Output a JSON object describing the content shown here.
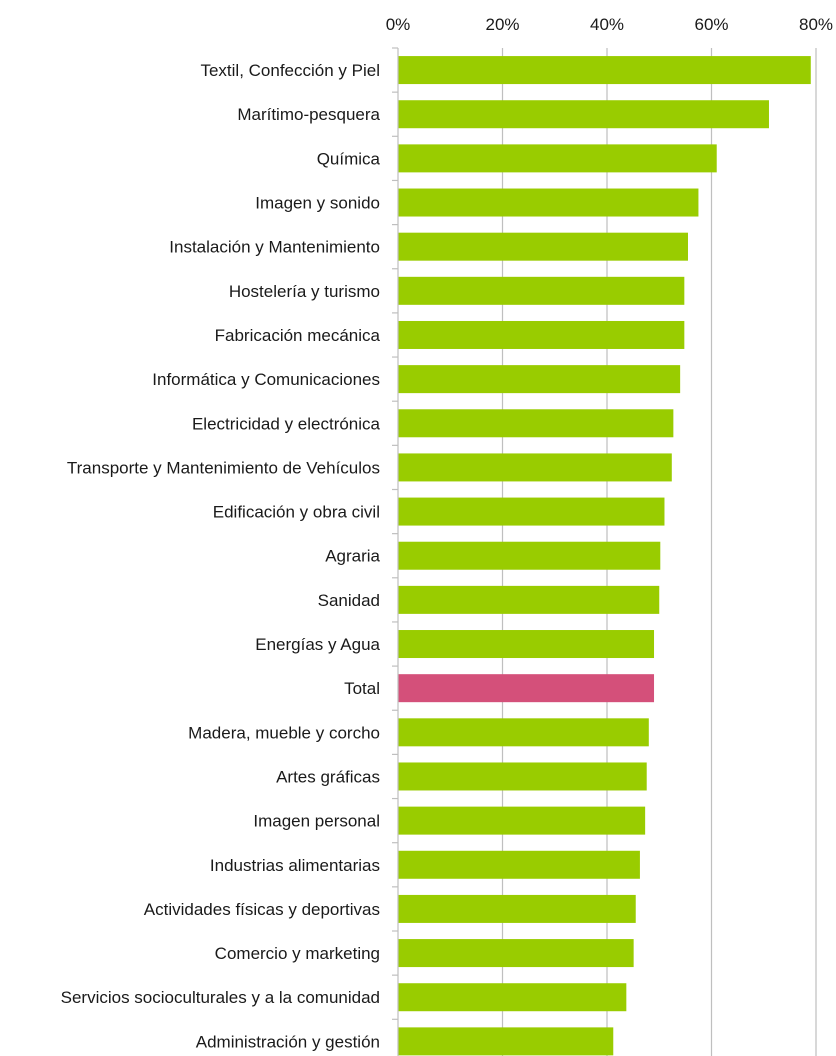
{
  "chart_data": {
    "type": "bar",
    "orientation": "horizontal",
    "title": "",
    "xlabel": "",
    "ylabel": "",
    "xlim": [
      0,
      0.8
    ],
    "x_ticks": [
      0,
      0.2,
      0.4,
      0.6,
      0.8
    ],
    "x_tick_labels": [
      "0%",
      "20%",
      "40%",
      "60%",
      "80%"
    ],
    "x_axis_position": "top",
    "grid": true,
    "legend": "none",
    "categories": [
      "Textil, Confección y Piel",
      "Marítimo-pesquera",
      "Química",
      "Imagen y sonido",
      "Instalación y Mantenimiento",
      "Hostelería y turismo",
      "Fabricación mecánica",
      "Informática y Comunicaciones",
      "Electricidad y electrónica",
      "Transporte y Mantenimiento de Vehículos",
      "Edificación y obra civil",
      "Agraria",
      "Sanidad",
      "Energías y Agua",
      "Total",
      "Madera, mueble y corcho",
      "Artes gráficas",
      "Imagen personal",
      "Industrias alimentarias",
      "Actividades físicas y deportivas",
      "Comercio y marketing",
      "Servicios socioculturales y a la comunidad",
      "Administración y gestión"
    ],
    "values": [
      0.79,
      0.71,
      0.61,
      0.575,
      0.555,
      0.548,
      0.548,
      0.54,
      0.527,
      0.524,
      0.51,
      0.502,
      0.5,
      0.49,
      0.49,
      0.48,
      0.476,
      0.473,
      0.463,
      0.455,
      0.451,
      0.437,
      0.412
    ],
    "bar_color": "#99CC00",
    "highlight_category": "Total",
    "highlight_color": "#D4507A",
    "gridline_color": "#BFBFBF"
  }
}
